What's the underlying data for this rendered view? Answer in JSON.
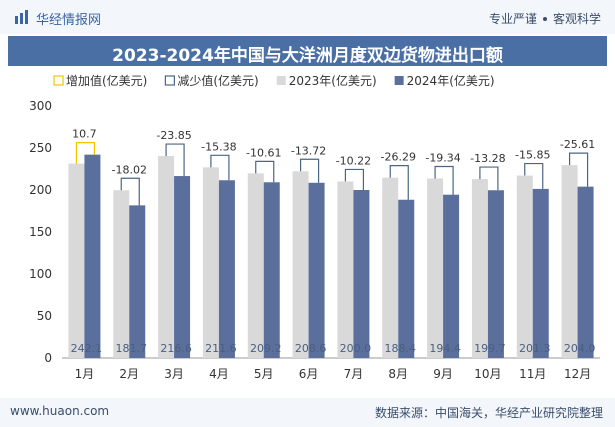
{
  "header": {
    "brand": "华经情报网",
    "tag_left": "专业严谨",
    "tag_right": "客观科学"
  },
  "footer": {
    "url": "www.huaon.com",
    "source": "数据来源：中国海关，华经产业研究院整理"
  },
  "chart_data": {
    "type": "bar",
    "title": "2023-2024年中国与大洋洲月度双边货物进出口额",
    "categories": [
      "1月",
      "2月",
      "3月",
      "4月",
      "5月",
      "6月",
      "7月",
      "8月",
      "9月",
      "10月",
      "11月",
      "12月"
    ],
    "ylim": [
      0,
      300
    ],
    "yticks": [
      0,
      50,
      100,
      150,
      200,
      250,
      300
    ],
    "grid": false,
    "legend_position": "top",
    "legend": [
      "增加值(亿美元)",
      "减少值(亿美元)",
      "2023年(亿美元)",
      "2024年(亿美元)"
    ],
    "series": [
      {
        "name": "2023年(亿美元)",
        "values": [
          231.4,
          199.7,
          240.4,
          227.0,
          219.8,
          222.3,
          210.2,
          214.7,
          213.7,
          213.0,
          217.2,
          229.6
        ]
      },
      {
        "name": "2024年(亿美元)",
        "values": [
          242.1,
          181.7,
          216.6,
          211.6,
          209.2,
          208.6,
          200.0,
          188.4,
          194.4,
          199.7,
          201.3,
          204.0
        ]
      }
    ],
    "change_labels": [
      "10.7",
      "-18.02",
      "-23.85",
      "-15.38",
      "-10.61",
      "-13.72",
      "-10.22",
      "-26.29",
      "-19.34",
      "-13.28",
      "-15.85",
      "-25.61"
    ],
    "bar_labels": [
      "242.1",
      "181.7",
      "216.6",
      "211.6",
      "209.2",
      "208.6",
      "200.0",
      "188.4",
      "194.4",
      "199.7",
      "201.3",
      "204.0"
    ],
    "colors": {
      "y2023": "#d9d9d9",
      "y2024": "#5b6f9c",
      "increase": "#f5c400",
      "decrease": "#4a6685"
    }
  }
}
